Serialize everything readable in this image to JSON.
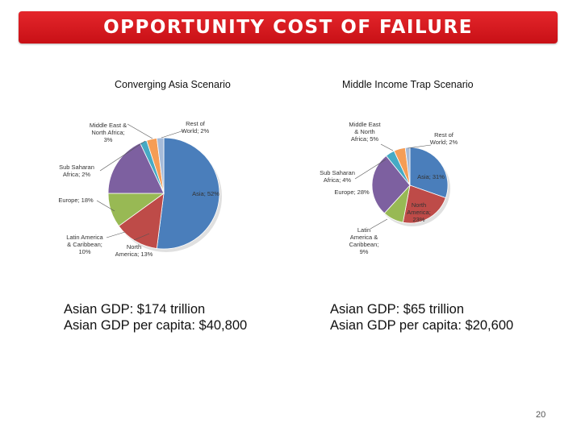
{
  "header": {
    "title": "OPPORTUNITY COST OF FAILURE"
  },
  "chart_data": [
    {
      "type": "pie",
      "title": "Converging Asia Scenario",
      "slices": [
        {
          "label": "Asia; 52%",
          "value": 52,
          "color": "#4a7ebb"
        },
        {
          "label": "North America; 13%",
          "value": 13,
          "color": "#be4b48"
        },
        {
          "label": "Latin America & Caribbean; 10%",
          "value": 10,
          "color": "#98b954"
        },
        {
          "label": "Europe; 18%",
          "value": 18,
          "color": "#7d60a0"
        },
        {
          "label": "Sub Saharan Africa; 2%",
          "value": 2,
          "color": "#46aac4"
        },
        {
          "label": "Middle East & North Africa; 3%",
          "value": 3,
          "color": "#f59d56"
        },
        {
          "label": "Rest of World; 2%",
          "value": 2,
          "color": "#a6bbd9"
        }
      ]
    },
    {
      "type": "pie",
      "title": "Middle Income Trap Scenario",
      "slices": [
        {
          "label": "Asia; 31%",
          "value": 31,
          "color": "#4a7ebb"
        },
        {
          "label": "North America; 23%",
          "value": 23,
          "color": "#be4b48"
        },
        {
          "label": "Latin America & Caribbean; 9%",
          "value": 9,
          "color": "#98b954"
        },
        {
          "label": "Europe; 28%",
          "value": 28,
          "color": "#7d60a0"
        },
        {
          "label": "Sub Saharan Africa; 4%",
          "value": 4,
          "color": "#46aac4"
        },
        {
          "label": "Middle East & North Africa; 5%",
          "value": 5,
          "color": "#f59d56"
        },
        {
          "label": "Rest of World; 2%",
          "value": 2,
          "color": "#a6bbd9"
        }
      ]
    }
  ],
  "captions": [
    {
      "line1": "Asian GDP: $174 trillion",
      "line2": "Asian GDP per capita: $40,800"
    },
    {
      "line1": "Asian GDP: $65 trillion",
      "line2": "Asian GDP per capita: $20,600"
    }
  ],
  "page_number": "20"
}
